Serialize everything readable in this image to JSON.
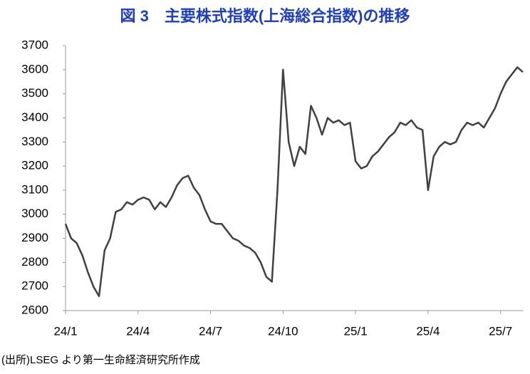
{
  "chart_data": {
    "type": "line",
    "title": "図 3　主要株式指数(上海総合指数)の推移",
    "source": "(出所)LSEG より第一生命経済研究所作成",
    "categories": [
      "24/1",
      null,
      null,
      null,
      null,
      null,
      null,
      null,
      null,
      null,
      null,
      null,
      null,
      "24/4",
      null,
      null,
      null,
      null,
      null,
      null,
      null,
      null,
      null,
      null,
      null,
      null,
      "24/7",
      null,
      null,
      null,
      null,
      null,
      null,
      null,
      null,
      null,
      null,
      null,
      null,
      "24/10",
      null,
      null,
      null,
      null,
      null,
      null,
      null,
      null,
      null,
      null,
      null,
      null,
      "25/1",
      null,
      null,
      null,
      null,
      null,
      null,
      null,
      null,
      null,
      null,
      null,
      null,
      "25/4",
      null,
      null,
      null,
      null,
      null,
      null,
      null,
      null,
      null,
      null,
      null,
      null,
      "25/7",
      null,
      null,
      null,
      null
    ],
    "series": [
      {
        "color": "#404040",
        "values": [
          2960,
          2900,
          2880,
          2830,
          2760,
          2700,
          2660,
          2850,
          2900,
          3010,
          3020,
          3050,
          3040,
          3060,
          3070,
          3060,
          3020,
          3050,
          3030,
          3070,
          3120,
          3150,
          3160,
          3110,
          3080,
          3020,
          2970,
          2960,
          2960,
          2930,
          2900,
          2890,
          2870,
          2860,
          2840,
          2800,
          2740,
          2720,
          3100,
          3600,
          3300,
          3200,
          3280,
          3250,
          3450,
          3400,
          3330,
          3400,
          3380,
          3390,
          3370,
          3380,
          3220,
          3190,
          3200,
          3240,
          3260,
          3290,
          3320,
          3340,
          3380,
          3370,
          3390,
          3360,
          3350,
          3100,
          3240,
          3280,
          3300,
          3290,
          3300,
          3350,
          3380,
          3370,
          3380,
          3360,
          3400,
          3440,
          3500,
          3550,
          3580,
          3610,
          3590
        ]
      }
    ],
    "ylim": [
      2600,
      3700
    ],
    "yticks": [
      2600,
      2700,
      2800,
      2900,
      3000,
      3100,
      3200,
      3300,
      3400,
      3500,
      3600,
      3700
    ]
  }
}
